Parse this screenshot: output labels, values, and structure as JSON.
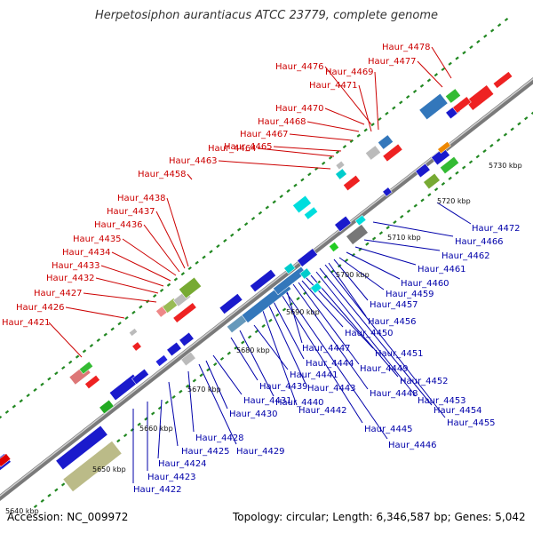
{
  "title": "Herpetosiphon aurantiacus ATCC 23779, complete genome",
  "footer": {
    "accession": "Accession: NC_009972",
    "topology": "Topology: circular; Length: 6,346,587 bp; Genes: 5,042"
  },
  "colors": {
    "forward_label": "#cc0000",
    "reverse_label": "#0000aa",
    "backbone": "#888888",
    "tick": "#228822"
  },
  "kbp_marks": [
    "5640 kbp",
    "5650 kbp",
    "5660 kbp",
    "5670 kbp",
    "5680 kbp",
    "5690 kbp",
    "5700 kbp",
    "5710 kbp",
    "5720 kbp",
    "5730 kbp"
  ],
  "forward_genes": [
    "Haur_4421",
    "Haur_4426",
    "Haur_4427",
    "Haur_4432",
    "Haur_4433",
    "Haur_4434",
    "Haur_4435",
    "Haur_4436",
    "Haur_4437",
    "Haur_4438",
    "Haur_4458",
    "Haur_4463",
    "Haur_4464",
    "Haur_4465",
    "Haur_4467",
    "Haur_4468",
    "Haur_4470",
    "Haur_4471",
    "Haur_4469",
    "Haur_4476",
    "Haur_4477",
    "Haur_4478"
  ],
  "reverse_genes": [
    "Haur_4422",
    "Haur_4423",
    "Haur_4424",
    "Haur_4425",
    "Haur_4428",
    "Haur_4429",
    "Haur_4430",
    "Haur_4431",
    "Haur_4439",
    "Haur_4440",
    "Haur_4441",
    "Haur_4442",
    "Haur_4443",
    "Haur_4444",
    "Haur_4445",
    "Haur_4446",
    "Haur_4447",
    "Haur_4448",
    "Haur_4449",
    "Haur_4450",
    "Haur_4451",
    "Haur_4452",
    "Haur_4453",
    "Haur_4454",
    "Haur_4455",
    "Haur_4456",
    "Haur_4457",
    "Haur_4459",
    "Haur_4460",
    "Haur_4461",
    "Haur_4462",
    "Haur_4466",
    "Haur_4472"
  ]
}
